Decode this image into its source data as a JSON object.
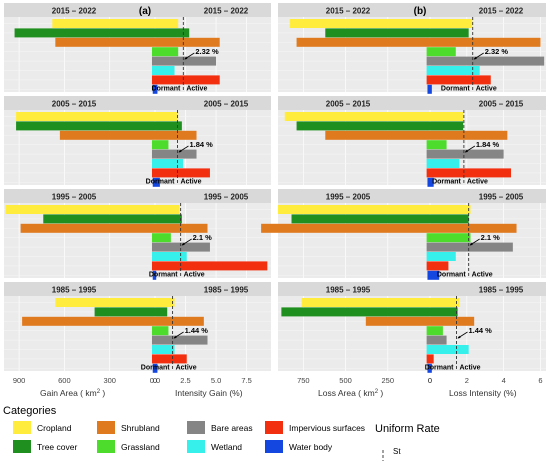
{
  "colors": {
    "cropland": "#ffec3d",
    "tree_cover": "#1f8f1f",
    "shrubland": "#e07a1f",
    "grassland": "#4ddc2b",
    "bare_areas": "#858585",
    "wetland": "#36f0ec",
    "impervious": "#f2300f",
    "water_body": "#1446e0"
  },
  "chart_data": [
    {
      "type": "bar",
      "panel_label": "(a)",
      "axis_left": {
        "label": "Gain Area ( km",
        "sup": "2",
        "suffix": " )",
        "ticks": [
          900,
          600,
          300,
          0
        ],
        "min": 0,
        "max": 1000
      },
      "axis_right": {
        "label": "Intensity Gain (%)",
        "ticks": [
          "0.0",
          "2.5",
          "5.0",
          "7.5"
        ],
        "tick_values": [
          0,
          2.5,
          5,
          7.5
        ],
        "min": 0,
        "max": 9.5
      },
      "categories": [
        "Cropland",
        "Tree cover",
        "Shrubland",
        "Grassland",
        "Bare areas",
        "Wetland",
        "Impervious surfaces",
        "Water body"
      ],
      "panels": [
        {
          "period_left": "2015 – 2022",
          "period_right": "2015 – 2022",
          "uniform_rate": 2.32,
          "uniform_label": "2.32 %",
          "dormant_label": "Dormant",
          "active_label": "Active",
          "area": [
            680,
            930,
            660,
            20,
            20,
            20,
            20,
            15
          ],
          "intensity": [
            1.9,
            2.8,
            5.3,
            1.9,
            5.0,
            1.6,
            5.3,
            0.2
          ]
        },
        {
          "period_left": "2005 – 2015",
          "period_right": "2005 – 2015",
          "uniform_rate": 1.84,
          "uniform_label": "1.84 %",
          "dormant_label": "Dormant",
          "active_label": "Active",
          "area": [
            920,
            920,
            630,
            20,
            20,
            20,
            20,
            15
          ],
          "intensity": [
            1.9,
            2.2,
            3.4,
            1.1,
            3.4,
            2.3,
            4.5,
            0.4
          ]
        },
        {
          "period_left": "1995 – 2005",
          "period_right": "1995 – 2005",
          "uniform_rate": 2.1,
          "uniform_label": "2.1 %",
          "dormant_label": "Dormant",
          "active_label": "Active",
          "area": [
            990,
            740,
            890,
            20,
            20,
            20,
            20,
            15
          ],
          "intensity": [
            2.0,
            2.2,
            4.3,
            1.3,
            4.5,
            2.6,
            9.2,
            0.1
          ]
        },
        {
          "period_left": "1985 – 1995",
          "period_right": "1985 – 1995",
          "uniform_rate": 1.44,
          "uniform_label": "1.44 %",
          "dormant_label": "Dormant",
          "active_label": "Active",
          "area": [
            660,
            400,
            880,
            20,
            20,
            20,
            20,
            15
          ],
          "intensity": [
            1.6,
            1.0,
            4.0,
            1.1,
            4.3,
            1.6,
            2.6,
            0.2
          ]
        }
      ]
    },
    {
      "type": "bar",
      "panel_label": "(b)",
      "axis_left": {
        "label": "Loss Area ( km",
        "sup": "2",
        "suffix": " )",
        "ticks": [
          750,
          500,
          250,
          0
        ],
        "min": 0,
        "max": 900
      },
      "axis_right": {
        "label": "Loss Intensity (%)",
        "ticks": [
          "0",
          "2",
          "4",
          "6"
        ],
        "tick_values": [
          0,
          2,
          4,
          6
        ],
        "min": 0,
        "max": 6.3
      },
      "categories": [
        "Cropland",
        "Tree cover",
        "Shrubland",
        "Grassland",
        "Bare areas",
        "Wetland",
        "Impervious surfaces",
        "Water body"
      ],
      "panels": [
        {
          "period_left": "2015 – 2022",
          "period_right": "2015 – 2022",
          "uniform_rate": 2.32,
          "uniform_label": "2.32 %",
          "dormant_label": "Dormant",
          "active_label": "Active",
          "area": [
            830,
            620,
            790,
            20,
            20,
            20,
            20,
            15
          ],
          "intensity": [
            2.3,
            2.1,
            6.0,
            1.4,
            6.2,
            2.7,
            3.3,
            0.1
          ]
        },
        {
          "period_left": "2005 – 2015",
          "period_right": "2005 – 2015",
          "uniform_rate": 1.84,
          "uniform_label": "1.84 %",
          "dormant_label": "Dormant",
          "active_label": "Active",
          "area": [
            860,
            790,
            620,
            20,
            20,
            20,
            20,
            15
          ],
          "intensity": [
            1.8,
            1.8,
            4.2,
            0.9,
            4.0,
            1.6,
            4.4,
            0.2
          ]
        },
        {
          "period_left": "1995 – 2005",
          "period_right": "1995 – 2005",
          "uniform_rate": 2.1,
          "uniform_label": "2.1 %",
          "dormant_label": "Dormant",
          "active_label": "Active",
          "area": [
            900,
            820,
            1000,
            20,
            20,
            20,
            20,
            15
          ],
          "intensity": [
            2.2,
            2.1,
            4.7,
            2.2,
            4.5,
            1.4,
            1.0,
            0.5
          ]
        },
        {
          "period_left": "1985 – 1995",
          "period_right": "1985 – 1995",
          "uniform_rate": 1.44,
          "uniform_label": "1.44 %",
          "dormant_label": "Dormant",
          "active_label": "Active",
          "area": [
            760,
            880,
            380,
            20,
            20,
            20,
            20,
            15
          ],
          "intensity": [
            1.6,
            1.5,
            2.4,
            0.7,
            0.9,
            2.1,
            0.2,
            0.1
          ]
        }
      ]
    }
  ],
  "legend": {
    "title": "Categories",
    "items": [
      {
        "label": "Cropland",
        "color": "#ffec3d"
      },
      {
        "label": "Shrubland",
        "color": "#e07a1f"
      },
      {
        "label": "Bare areas",
        "color": "#858585"
      },
      {
        "label": "Impervious surfaces",
        "color": "#f2300f"
      },
      {
        "label": "Tree cover",
        "color": "#1f8f1f"
      },
      {
        "label": "Grassland",
        "color": "#4ddc2b"
      },
      {
        "label": "Wetland",
        "color": "#36f0ec"
      },
      {
        "label": "Water body",
        "color": "#1446e0"
      }
    ],
    "uniform_title": "Uniform Rate",
    "uniform_item": "St"
  }
}
